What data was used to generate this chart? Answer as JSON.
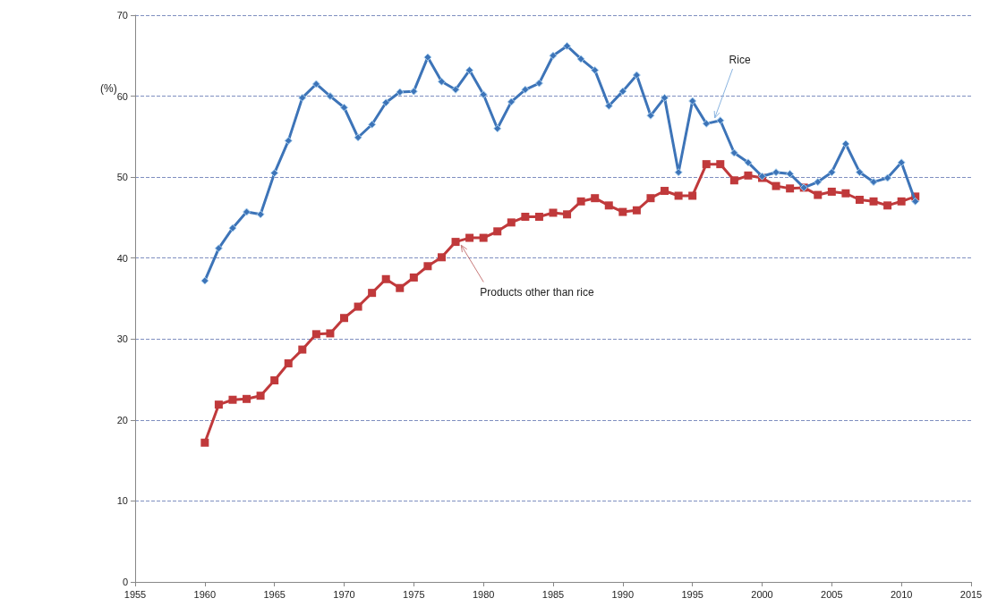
{
  "chart_data": {
    "type": "line",
    "ylabel": "(%)",
    "x": [
      1960,
      1961,
      1962,
      1963,
      1964,
      1965,
      1966,
      1967,
      1968,
      1969,
      1970,
      1971,
      1972,
      1973,
      1974,
      1975,
      1976,
      1977,
      1978,
      1979,
      1980,
      1981,
      1982,
      1983,
      1984,
      1985,
      1986,
      1987,
      1988,
      1989,
      1990,
      1991,
      1992,
      1993,
      1994,
      1995,
      1996,
      1997,
      1998,
      1999,
      2000,
      2001,
      2002,
      2003,
      2004,
      2005,
      2006,
      2007,
      2008,
      2009,
      2010,
      2011
    ],
    "series": [
      {
        "color": "#3d74b8",
        "marker": "diamond",
        "values": [
          37.2,
          41.2,
          43.7,
          45.7,
          45.4,
          50.5,
          54.5,
          59.8,
          61.5,
          60.0,
          58.6,
          54.9,
          56.5,
          59.2,
          60.5,
          60.6,
          64.8,
          61.8,
          60.8,
          63.2,
          60.2,
          56.0,
          59.3,
          60.8,
          61.6,
          65.0,
          66.2,
          64.6,
          63.2,
          58.8,
          60.6,
          62.6,
          57.6,
          59.8,
          50.6,
          59.4,
          56.6,
          57.0,
          53.0,
          51.8,
          50.1,
          50.6,
          50.4,
          48.7,
          49.4,
          50.6,
          54.1,
          50.6,
          49.4,
          49.9,
          51.8,
          47.0
        ]
      },
      {
        "color": "#c0393b",
        "marker": "square",
        "values": [
          17.2,
          21.9,
          22.5,
          22.6,
          23.0,
          24.9,
          27.0,
          28.7,
          30.6,
          30.7,
          32.6,
          34.0,
          35.7,
          37.4,
          36.3,
          37.6,
          39.0,
          40.1,
          42.0,
          42.5,
          42.5,
          43.3,
          44.4,
          45.1,
          45.1,
          45.6,
          45.4,
          47.0,
          47.4,
          46.5,
          45.7,
          45.9,
          47.4,
          48.3,
          47.7,
          47.7,
          51.6,
          51.6,
          49.6,
          50.2,
          49.9,
          48.9,
          48.6,
          48.7,
          47.8,
          48.2,
          48.0,
          47.2,
          47.0,
          46.5,
          47.0,
          47.6
        ]
      }
    ],
    "annotations": [
      {
        "text": "Rice",
        "x": 1996.6,
        "y": 57.3
      },
      {
        "text": "Products other than rice",
        "x": 1978.4,
        "y": 41.6
      }
    ],
    "xlim": [
      1955,
      2015
    ],
    "xticks": [
      1955,
      1960,
      1965,
      1970,
      1975,
      1980,
      1985,
      1990,
      1995,
      2000,
      2005,
      2010,
      2015
    ],
    "ylim": [
      0,
      70
    ],
    "yticks": [
      0,
      10,
      20,
      30,
      40,
      50,
      60,
      70
    ],
    "grid": "y",
    "line_style": "solid"
  }
}
